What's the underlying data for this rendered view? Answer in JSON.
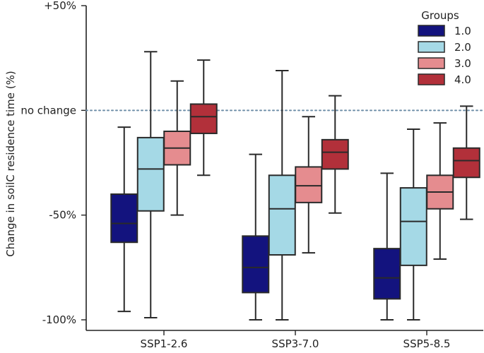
{
  "chart_data": {
    "type": "box",
    "ylabel": "Change in soilC residence time (%)",
    "xlabel": "",
    "ylim": [
      -100,
      50
    ],
    "yticks": [
      {
        "value": 50,
        "label": "+50%"
      },
      {
        "value": 0,
        "label": "no change"
      },
      {
        "value": -50,
        "label": "-50%"
      },
      {
        "value": -100,
        "label": "-100%"
      }
    ],
    "reference_line": {
      "value": 0,
      "style": "dotted",
      "color": "#6f8fa8"
    },
    "categories": [
      "SSP1-2.6",
      "SSP3-7.0",
      "SSP5-8.5"
    ],
    "legend": {
      "title": "Groups",
      "position": "top-right"
    },
    "series": [
      {
        "name": "1.0",
        "color": "#13137e",
        "boxes": [
          {
            "whisker_low": -96,
            "q1": -63,
            "median": -54,
            "q3": -40,
            "whisker_high": -8
          },
          {
            "whisker_low": -100,
            "q1": -87,
            "median": -75,
            "q3": -60,
            "whisker_high": -21
          },
          {
            "whisker_low": -100,
            "q1": -90,
            "median": -80,
            "q3": -66,
            "whisker_high": -30
          }
        ]
      },
      {
        "name": "2.0",
        "color": "#a5d9e6",
        "boxes": [
          {
            "whisker_low": -99,
            "q1": -48,
            "median": -28,
            "q3": -13,
            "whisker_high": 28
          },
          {
            "whisker_low": -100,
            "q1": -69,
            "median": -47,
            "q3": -31,
            "whisker_high": 19
          },
          {
            "whisker_low": -100,
            "q1": -74,
            "median": -53,
            "q3": -37,
            "whisker_high": -9
          }
        ]
      },
      {
        "name": "3.0",
        "color": "#e58c8f",
        "boxes": [
          {
            "whisker_low": -50,
            "q1": -26,
            "median": -18,
            "q3": -10,
            "whisker_high": 14
          },
          {
            "whisker_low": -68,
            "q1": -44,
            "median": -36,
            "q3": -27,
            "whisker_high": -3
          },
          {
            "whisker_low": -71,
            "q1": -47,
            "median": -39,
            "q3": -31,
            "whisker_high": -6
          }
        ]
      },
      {
        "name": "4.0",
        "color": "#b2303a",
        "boxes": [
          {
            "whisker_low": -31,
            "q1": -11,
            "median": -3,
            "q3": 3,
            "whisker_high": 24
          },
          {
            "whisker_low": -49,
            "q1": -28,
            "median": -20,
            "q3": -14,
            "whisker_high": 7
          },
          {
            "whisker_low": -52,
            "q1": -32,
            "median": -24,
            "q3": -18,
            "whisker_high": 2
          }
        ]
      }
    ]
  }
}
